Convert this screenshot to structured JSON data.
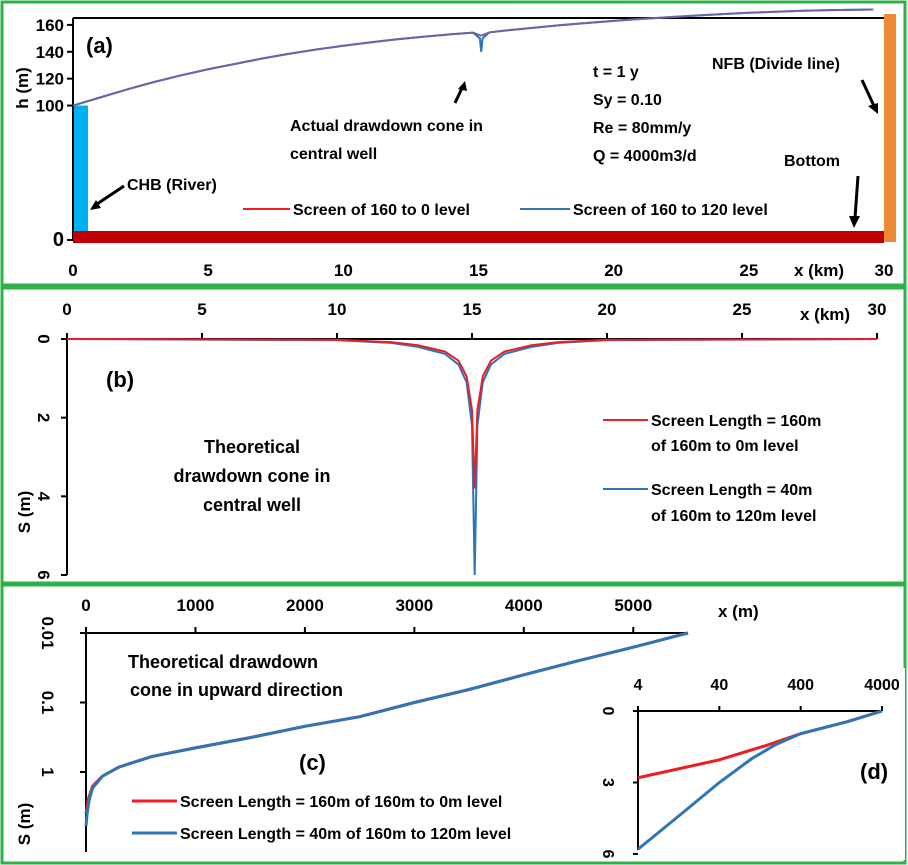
{
  "colors": {
    "frame": "#2db24a",
    "red": "#ee1c24",
    "blue": "#2e75b6",
    "purple": "#6f63a8",
    "river": "#00b0f0",
    "divide": "#ed8a33",
    "bottom": "#c00000"
  },
  "chart_data": [
    {
      "panel": "(a)",
      "type": "line",
      "xlabel": "x (km)",
      "ylabel": "h (m)",
      "xlim": [
        0,
        30
      ],
      "ylim": [
        0,
        180
      ],
      "x_ticks": [
        "0",
        "5",
        "10",
        "15",
        "20",
        "25",
        "30"
      ],
      "y_ticks": [
        "0",
        "100",
        "120",
        "140",
        "160"
      ],
      "series": [
        {
          "name": "Screen of 160 to 0 level",
          "color": "#ee1c24",
          "points": [
            [
              0,
              100
            ],
            [
              1,
              106
            ],
            [
              2,
              112
            ],
            [
              3,
              117.5
            ],
            [
              4,
              122.5
            ],
            [
              5,
              127
            ],
            [
              6,
              131
            ],
            [
              7,
              135
            ],
            [
              8,
              138.5
            ],
            [
              9,
              141.7
            ],
            [
              10,
              144.5
            ],
            [
              11,
              147
            ],
            [
              12,
              149.3
            ],
            [
              13,
              151.3
            ],
            [
              14,
              153
            ],
            [
              14.8,
              154.2
            ],
            [
              15.1,
              152
            ],
            [
              15.4,
              154.4
            ],
            [
              16,
              155.8
            ],
            [
              17,
              157.8
            ],
            [
              18,
              159.7
            ],
            [
              19,
              161.4
            ],
            [
              20,
              163
            ],
            [
              21,
              164.4
            ],
            [
              22,
              165.7
            ],
            [
              23,
              166.9
            ],
            [
              24,
              168
            ],
            [
              25,
              169
            ],
            [
              26,
              169.8
            ],
            [
              27,
              170.5
            ],
            [
              28,
              171
            ],
            [
              29,
              171.3
            ],
            [
              29.6,
              171.4
            ]
          ]
        },
        {
          "name": "Screen of 160 to 120 level",
          "color": "#2e75b6",
          "points": [
            [
              0,
              100
            ],
            [
              1,
              106
            ],
            [
              2,
              112
            ],
            [
              3,
              117.5
            ],
            [
              4,
              122.5
            ],
            [
              5,
              127
            ],
            [
              6,
              131
            ],
            [
              7,
              135
            ],
            [
              8,
              138.5
            ],
            [
              9,
              141.7
            ],
            [
              10,
              144.5
            ],
            [
              11,
              147
            ],
            [
              12,
              149.3
            ],
            [
              13,
              151.3
            ],
            [
              14,
              153
            ],
            [
              14.8,
              154.2
            ],
            [
              15.05,
              150
            ],
            [
              15.1,
              140
            ],
            [
              15.15,
              150
            ],
            [
              15.4,
              154.4
            ],
            [
              16,
              155.8
            ],
            [
              17,
              157.8
            ],
            [
              18,
              159.7
            ],
            [
              19,
              161.4
            ],
            [
              20,
              163
            ],
            [
              21,
              164.4
            ],
            [
              22,
              165.7
            ],
            [
              23,
              166.9
            ],
            [
              24,
              168
            ],
            [
              25,
              169
            ],
            [
              26,
              169.8
            ],
            [
              27,
              170.5
            ],
            [
              28,
              171
            ],
            [
              29,
              171.3
            ],
            [
              29.6,
              171.4
            ]
          ]
        }
      ],
      "annotations": [
        "CHB (River)",
        "Actual drawdown cone in",
        "central well",
        "NFB (Divide line)",
        "Bottom"
      ],
      "parameters": [
        "t = 1 y",
        "Sy = 0.10",
        "Re = 80mm/y",
        "Q = 4000m3/d"
      ]
    },
    {
      "panel": "(b)",
      "type": "line",
      "xlabel": "x (km)",
      "ylabel": "S (m)",
      "xlim": [
        0,
        30
      ],
      "ylim": [
        6,
        0
      ],
      "x_ticks": [
        "0",
        "5",
        "10",
        "15",
        "20",
        "25",
        "30"
      ],
      "y_ticks": [
        "0",
        "2",
        "4",
        "6"
      ],
      "series": [
        {
          "name": "Screen Length = 160m",
          "name_line2": "of 160m to 0m level",
          "color": "#ee1c24",
          "points": [
            [
              0,
              0
            ],
            [
              10,
              0.02
            ],
            [
              12,
              0.08
            ],
            [
              13,
              0.16
            ],
            [
              14,
              0.32
            ],
            [
              14.5,
              0.55
            ],
            [
              14.8,
              0.95
            ],
            [
              15,
              1.8
            ],
            [
              15.1,
              3.8
            ],
            [
              15.2,
              1.8
            ],
            [
              15.4,
              0.95
            ],
            [
              15.7,
              0.55
            ],
            [
              16.2,
              0.32
            ],
            [
              17.2,
              0.16
            ],
            [
              18.2,
              0.08
            ],
            [
              20,
              0.02
            ],
            [
              30,
              0
            ]
          ]
        },
        {
          "name": "Screen Length = 40m",
          "name_line2": "of 160m to 120m level",
          "color": "#2e75b6",
          "points": [
            [
              0,
              0
            ],
            [
              10,
              0.03
            ],
            [
              12,
              0.1
            ],
            [
              13,
              0.2
            ],
            [
              14,
              0.38
            ],
            [
              14.5,
              0.65
            ],
            [
              14.8,
              1.1
            ],
            [
              15,
              2.2
            ],
            [
              15.1,
              6
            ],
            [
              15.2,
              2.2
            ],
            [
              15.4,
              1.1
            ],
            [
              15.7,
              0.65
            ],
            [
              16.2,
              0.38
            ],
            [
              17.2,
              0.2
            ],
            [
              18.2,
              0.1
            ],
            [
              20,
              0.03
            ],
            [
              30,
              0
            ]
          ]
        }
      ],
      "annotations": [
        "Theoretical",
        "drawdown cone in",
        "central well"
      ]
    },
    {
      "panel": "(c)",
      "type": "line",
      "xlabel": "x (m)",
      "ylabel": "S (m)",
      "xlim": [
        0,
        5500
      ],
      "y_log_reversed": true,
      "x_ticks": [
        "0",
        "1000",
        "2000",
        "3000",
        "4000",
        "5000"
      ],
      "y_ticks": [
        "0.01",
        "0.1",
        "1"
      ],
      "series": [
        {
          "name": "Screen Length = 160m  of 160m to 0m level",
          "color": "#ee1c24",
          "points": [
            [
              0,
              4
            ],
            [
              20,
              2.5
            ],
            [
              60,
              1.6
            ],
            [
              150,
              1.15
            ],
            [
              300,
              0.85
            ],
            [
              600,
              0.6
            ],
            [
              1000,
              0.45
            ],
            [
              1500,
              0.32
            ],
            [
              2000,
              0.22
            ],
            [
              2500,
              0.16
            ],
            [
              3000,
              0.1
            ],
            [
              3500,
              0.065
            ],
            [
              4000,
              0.04
            ],
            [
              4500,
              0.025
            ],
            [
              5000,
              0.016
            ],
            [
              5500,
              0.01
            ]
          ]
        },
        {
          "name": "Screen Length = 40m of 160m to 120m level",
          "color": "#2e75b6",
          "points": [
            [
              0,
              6
            ],
            [
              10,
              4
            ],
            [
              30,
              2.5
            ],
            [
              60,
              1.7
            ],
            [
              150,
              1.15
            ],
            [
              300,
              0.85
            ],
            [
              600,
              0.6
            ],
            [
              1000,
              0.45
            ],
            [
              1500,
              0.32
            ],
            [
              2000,
              0.22
            ],
            [
              2500,
              0.16
            ],
            [
              3000,
              0.1
            ],
            [
              3500,
              0.065
            ],
            [
              4000,
              0.04
            ],
            [
              4500,
              0.025
            ],
            [
              5000,
              0.016
            ],
            [
              5500,
              0.01
            ]
          ]
        }
      ],
      "annotations": [
        "Theoretical  drawdown",
        "cone in upward direction"
      ]
    },
    {
      "panel": "(d)",
      "type": "line",
      "x_log": true,
      "xlim": [
        4,
        4000
      ],
      "ylim": [
        6,
        0
      ],
      "x_ticks": [
        "4",
        "40",
        "400",
        "4000"
      ],
      "y_ticks": [
        "0",
        "3",
        "6"
      ],
      "series": [
        {
          "color": "#ee1c24",
          "points": [
            [
              4,
              2.8
            ],
            [
              40,
              2.05
            ],
            [
              150,
              1.45
            ],
            [
              400,
              0.95
            ],
            [
              1500,
              0.45
            ],
            [
              4000,
              0
            ]
          ]
        },
        {
          "color": "#2e75b6",
          "points": [
            [
              4,
              5.8
            ],
            [
              15,
              4.2
            ],
            [
              40,
              3.0
            ],
            [
              100,
              2.0
            ],
            [
              200,
              1.4
            ],
            [
              400,
              0.95
            ],
            [
              1500,
              0.45
            ],
            [
              4000,
              0
            ]
          ]
        }
      ]
    }
  ]
}
